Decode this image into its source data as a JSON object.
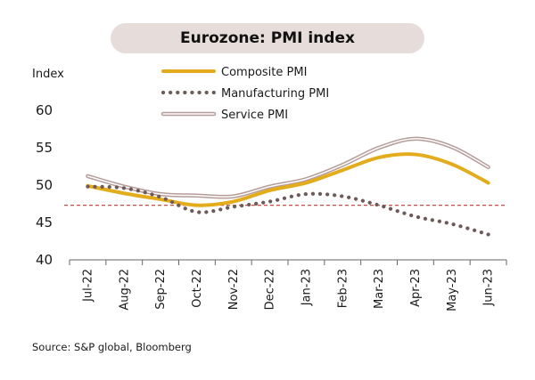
{
  "title": "Eurozone: PMI index",
  "y_unit_label": "Index",
  "source": "Source: S&P global, Bloomberg",
  "chart_data": {
    "type": "line",
    "title": "Eurozone: PMI index",
    "xlabel": "",
    "ylabel": "Index",
    "categories": [
      "Jul-22",
      "Aug-22",
      "Sep-22",
      "Oct-22",
      "Nov-22",
      "Dec-22",
      "Jan-23",
      "Feb-23",
      "Mar-23",
      "Apr-23",
      "May-23",
      "Jun-23"
    ],
    "ylim": [
      40,
      60
    ],
    "yticks": [
      40,
      45,
      50,
      55,
      60
    ],
    "reference_line": {
      "y": 47.3,
      "color": "#c0392b",
      "style": "dashed"
    },
    "legend_position": "top-center",
    "grid": false,
    "series": [
      {
        "name": "Composite PMI",
        "style": "solid-thick",
        "color": "#e3ac1c",
        "values": [
          49.9,
          48.9,
          48.1,
          47.3,
          47.8,
          49.3,
          50.3,
          52.0,
          53.7,
          54.1,
          52.8,
          50.3
        ]
      },
      {
        "name": "Manufacturing PMI",
        "style": "dotted",
        "color": "#6e5a58",
        "values": [
          49.8,
          49.6,
          48.4,
          46.4,
          47.1,
          47.8,
          48.8,
          48.5,
          47.3,
          45.8,
          44.8,
          43.4
        ]
      },
      {
        "name": "Service PMI",
        "style": "double",
        "color": "#b59c99",
        "values": [
          51.2,
          49.8,
          48.8,
          48.6,
          48.5,
          49.8,
          50.8,
          52.7,
          55.0,
          56.2,
          55.1,
          52.4
        ]
      }
    ]
  }
}
